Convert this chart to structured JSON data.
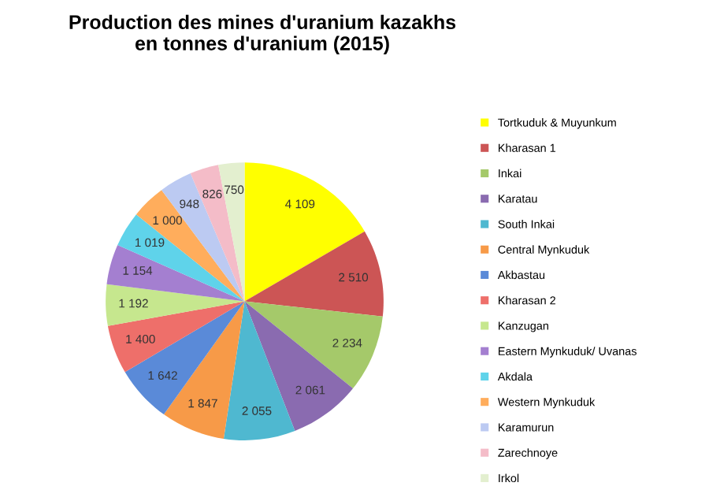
{
  "chart_data": {
    "type": "pie",
    "title": "Production des mines d'uranium kazakhs\nen tonnes d'uranium (2015)",
    "categories": [
      "Tortkuduk & Muyunkum",
      "Kharasan 1",
      "Inkai",
      "Karatau",
      "South Inkai",
      "Central Mynkuduk",
      "Akbastau",
      "Kharasan 2",
      "Kanzugan",
      "Eastern Mynkuduk/ Uvanas",
      "Akdala",
      "Western Mynkuduk",
      "Karamurun",
      "Zarechnoye",
      "Irkol"
    ],
    "values": [
      4109,
      2510,
      2234,
      2061,
      2055,
      1847,
      1642,
      1400,
      1192,
      1154,
      1019,
      1000,
      948,
      826,
      750
    ],
    "value_labels": [
      "4 109",
      "2 510",
      "2 234",
      "2 061",
      "2 055",
      "1 847",
      "1 642",
      "1 400",
      "1 192",
      "1 154",
      "1 019",
      "1 000",
      "948",
      "826",
      "750"
    ],
    "colors": [
      "#ffff00",
      "#cc5555",
      "#a5c96a",
      "#8a6bb0",
      "#4fb8d0",
      "#f79a48",
      "#5a8ad8",
      "#ee6f6a",
      "#c6e78e",
      "#a47fd0",
      "#5fd3ea",
      "#ffad5c",
      "#bccaf2",
      "#f4bcc8",
      "#e3efcf"
    ],
    "legend": "right"
  }
}
